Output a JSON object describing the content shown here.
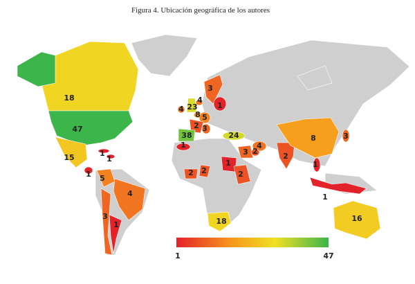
{
  "title": "Figura 4. Ubicación geográfica de los autores",
  "legend": {
    "min": 1,
    "max": 47
  },
  "regions": [
    {
      "value": 18
    },
    {
      "value": 47
    },
    {
      "value": 15
    },
    {
      "value": 1
    },
    {
      "value": 1
    },
    {
      "value": 1
    },
    {
      "value": 5
    },
    {
      "value": 4
    },
    {
      "value": 3
    },
    {
      "value": 1
    },
    {
      "value": 3
    },
    {
      "value": 4
    },
    {
      "value": 1
    },
    {
      "value": 4
    },
    {
      "value": 23
    },
    {
      "value": 8
    },
    {
      "value": 5
    },
    {
      "value": 2
    },
    {
      "value": 3
    },
    {
      "value": 38
    },
    {
      "value": 1
    },
    {
      "value": 24
    },
    {
      "value": 3
    },
    {
      "value": 4
    },
    {
      "value": 2
    },
    {
      "value": 1
    },
    {
      "value": 2
    },
    {
      "value": 2
    },
    {
      "value": 2
    },
    {
      "value": 2
    },
    {
      "value": 8
    },
    {
      "value": 3
    },
    {
      "value": 1
    },
    {
      "value": 1
    },
    {
      "value": 16
    },
    {
      "value": 18
    }
  ]
}
